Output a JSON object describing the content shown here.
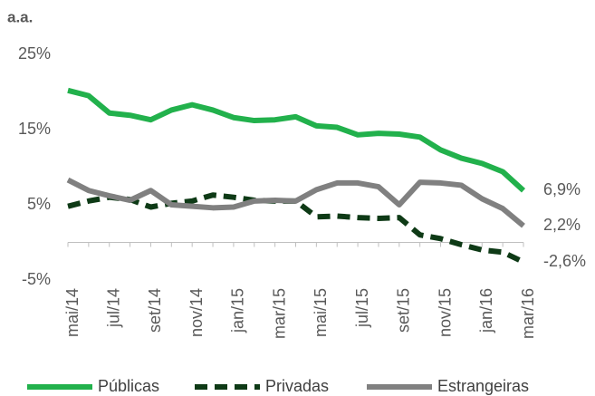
{
  "chart_data": {
    "type": "line",
    "title": "a.a.",
    "categories": [
      "mai/14",
      null,
      "jul/14",
      null,
      "set/14",
      null,
      "nov/14",
      null,
      "jan/15",
      null,
      "mar/15",
      null,
      "mai/15",
      null,
      "jul/15",
      null,
      "set/15",
      null,
      "nov/15",
      null,
      "jan/16",
      null,
      "mar/16"
    ],
    "series": [
      {
        "name": "Públicas",
        "color": "#22b14c",
        "dashed": false,
        "values": [
          20.2,
          19.5,
          17.2,
          16.9,
          16.3,
          17.6,
          18.3,
          17.6,
          16.6,
          16.2,
          16.3,
          16.7,
          15.5,
          15.3,
          14.3,
          14.5,
          14.4,
          14.0,
          12.3,
          11.2,
          10.5,
          9.4,
          6.9
        ],
        "value_labels": [
          null,
          null,
          null,
          null,
          null,
          null,
          null,
          null,
          null,
          null,
          null,
          null,
          null,
          null,
          null,
          null,
          null,
          null,
          null,
          null,
          null,
          null,
          "6,9%"
        ]
      },
      {
        "name": "Privadas",
        "color": "#0e3a16",
        "dashed": true,
        "values": [
          4.8,
          5.5,
          6.0,
          5.7,
          4.7,
          5.2,
          5.5,
          6.3,
          6.0,
          5.6,
          5.5,
          5.5,
          3.4,
          3.5,
          3.3,
          3.2,
          3.3,
          1.0,
          0.5,
          -0.3,
          -1.0,
          -1.3,
          -2.6
        ],
        "value_labels": [
          null,
          null,
          null,
          null,
          null,
          null,
          null,
          null,
          null,
          null,
          null,
          null,
          null,
          null,
          null,
          null,
          null,
          null,
          null,
          null,
          null,
          null,
          "-2,6%"
        ]
      },
      {
        "name": "Estrangeiras",
        "color": "#808080",
        "dashed": false,
        "values": [
          8.3,
          6.9,
          6.2,
          5.6,
          6.9,
          5.0,
          4.8,
          4.6,
          4.7,
          5.5,
          5.6,
          5.5,
          7.0,
          7.9,
          7.9,
          7.4,
          5.0,
          8.0,
          7.9,
          7.6,
          5.8,
          4.5,
          2.2
        ],
        "value_labels": [
          null,
          null,
          null,
          null,
          null,
          null,
          null,
          null,
          null,
          null,
          null,
          null,
          null,
          null,
          null,
          null,
          null,
          null,
          null,
          null,
          null,
          null,
          "2,2%"
        ]
      }
    ],
    "ylim": [
      -5,
      25
    ],
    "yticks": [
      {
        "value": -5,
        "label": "-5%"
      },
      {
        "value": 5,
        "label": "5%"
      },
      {
        "value": 15,
        "label": "15%"
      },
      {
        "value": 25,
        "label": "25%"
      }
    ],
    "grid": false
  }
}
